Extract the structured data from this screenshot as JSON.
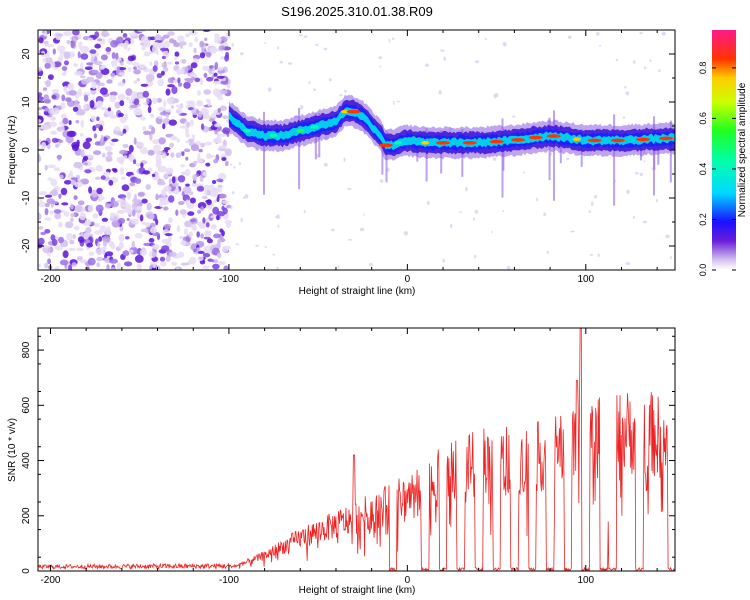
{
  "title": "S196.2025.310.01.38.R09",
  "chart_data": [
    {
      "type": "heatmap",
      "name": "spectrogram",
      "xlabel": "Height of straight line (km)",
      "ylabel": "Frequency (Hz)",
      "xlim": [
        -207,
        150
      ],
      "ylim": [
        -25,
        25
      ],
      "xticks": [
        -200,
        -100,
        0,
        100
      ],
      "xtick_labels": [
        "-200",
        "-100",
        "0",
        "100"
      ],
      "yticks": [
        20,
        10,
        0,
        -10,
        -20
      ],
      "ytick_labels": [
        "20",
        "10",
        "0",
        "-10",
        "-20"
      ],
      "colorbar": {
        "label": "Normalized spectral amplitude",
        "range": [
          0.0,
          0.95
        ],
        "ticks": [
          0.0,
          0.2,
          0.4,
          0.6,
          0.8
        ],
        "tick_labels": [
          "0.0",
          "0.2",
          "0.4",
          "0.6",
          "0.8"
        ]
      },
      "noise_region_x": [
        -207,
        -100
      ],
      "carrier_ridge": {
        "x": [
          -100,
          -90,
          -80,
          -70,
          -60,
          -50,
          -40,
          -35,
          -30,
          -25,
          -20,
          -15,
          -12,
          -8,
          -5,
          0,
          10,
          20,
          40,
          60,
          80,
          90,
          100,
          120,
          150
        ],
        "freq": [
          7,
          4,
          3,
          3,
          4,
          5,
          6,
          8,
          8,
          7,
          5,
          3,
          1,
          1,
          1.5,
          2,
          1.5,
          1.5,
          1.5,
          2,
          3,
          2.5,
          2,
          2,
          2.5
        ]
      }
    },
    {
      "type": "line",
      "name": "snr",
      "xlabel": "Height of straight line (km)",
      "ylabel": "SNR (10 * v/v)",
      "xlim": [
        -207,
        150
      ],
      "ylim": [
        0,
        880
      ],
      "xticks": [
        -200,
        -100,
        0,
        100
      ],
      "xtick_labels": [
        "-200",
        "-100",
        "0",
        "100"
      ],
      "yticks": [
        0,
        200,
        400,
        600,
        800
      ],
      "ytick_labels": [
        "0",
        "200",
        "400",
        "600",
        "800"
      ],
      "color": "#ee2222",
      "envelope": {
        "x": [
          -207,
          -100,
          -95,
          -90,
          -80,
          -70,
          -60,
          -50,
          -40,
          -30,
          -20,
          -10,
          0,
          10,
          20,
          30,
          40,
          50,
          60,
          70,
          80,
          90,
          100,
          110,
          120,
          130,
          140,
          150
        ],
        "y": [
          15,
          20,
          25,
          40,
          70,
          110,
          150,
          180,
          210,
          240,
          270,
          300,
          340,
          390,
          430,
          460,
          490,
          510,
          500,
          510,
          530,
          560,
          600,
          600,
          620,
          640,
          610,
          560
        ]
      },
      "peaks": [
        {
          "x": -30,
          "y": 420
        },
        {
          "x": 97,
          "y": 880
        },
        {
          "x": 95,
          "y": 690
        }
      ],
      "dropout_centers": [
        -8,
        10,
        20,
        30,
        40,
        50,
        60,
        70,
        80,
        90,
        100,
        110,
        115,
        130,
        148
      ]
    }
  ]
}
